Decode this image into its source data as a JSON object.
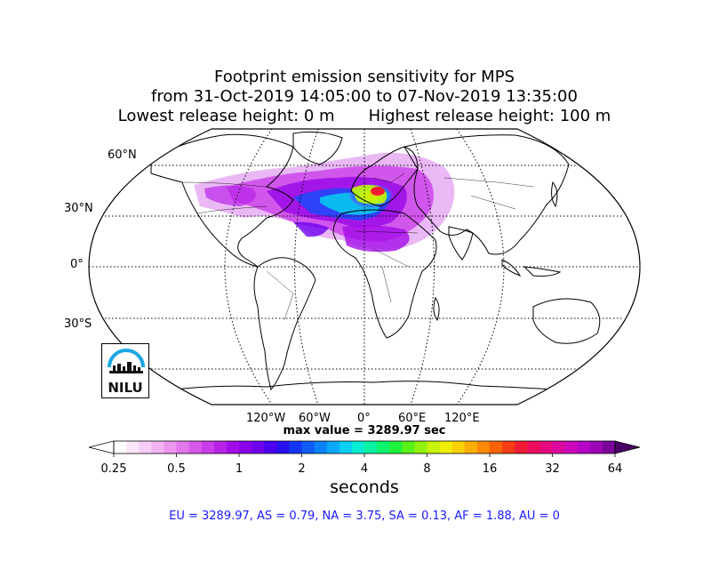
{
  "title": {
    "line1": "Footprint emission sensitivity for MPS",
    "line2": "from 31-Oct-2019 14:05:00 to 07-Nov-2019 13:35:00",
    "line3_left": "Lowest release height: 0 m",
    "line3_right": "Highest release height: 100 m"
  },
  "map": {
    "projection": "Robinson",
    "lat_labels": [
      "60°N",
      "30°N",
      "0°",
      "30°S"
    ],
    "lon_labels": [
      "120°W",
      "60°W",
      "0°",
      "60°E",
      "120°E"
    ],
    "max_value_text": "max value = 3289.97 sec"
  },
  "colorbar": {
    "tick_labels": [
      "0.25",
      "0.5",
      "1",
      "2",
      "4",
      "8",
      "16",
      "32",
      "64"
    ],
    "label": "seconds",
    "colors": [
      "#ffffff",
      "#fde6fb",
      "#f9cdf6",
      "#f3b2f2",
      "#ec95ee",
      "#e377ec",
      "#d85aea",
      "#cb3de9",
      "#b923e8",
      "#a40ce8",
      "#8a00ea",
      "#6f00ee",
      "#4b00f3",
      "#2810f6",
      "#1436fa",
      "#0f5cfb",
      "#0b82fb",
      "#08a8f8",
      "#06cef4",
      "#05ecd4",
      "#07f3a3",
      "#0cf56d",
      "#1ef33b",
      "#58f119",
      "#91f10d",
      "#c6f207",
      "#f0ee03",
      "#fcd102",
      "#fcad02",
      "#fb8802",
      "#fa6206",
      "#f83c14",
      "#f41c34",
      "#ef0c5c",
      "#e7087f",
      "#db079f",
      "#cc06bb",
      "#b605c6",
      "#9c05b5",
      "#7c049a"
    ],
    "under_color": "#ffffff",
    "over_color": "#4b0066"
  },
  "region_summary": "EU = 3289.97,  AS = 0.79,  NA = 3.75,  SA = 0.13,  AF = 1.88,  AU = 0",
  "logo": {
    "text": "NILU"
  }
}
